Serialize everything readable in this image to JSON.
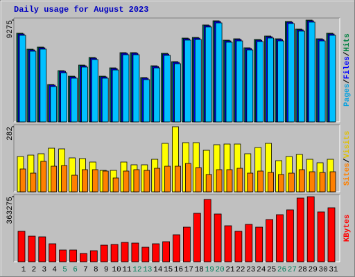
{
  "chart_data": [
    {
      "type": "bar",
      "title": "Daily usage for August 2023",
      "separator": "/",
      "ylim": [
        0,
        9275
      ],
      "yticks": [
        9275
      ],
      "series": [
        {
          "name": "Hits",
          "color": "#00805c",
          "label_color": "#008040",
          "values": [
            8077,
            6626,
            6815,
            3407,
            4669,
            4165,
            5174,
            5868,
            4165,
            4922,
            6310,
            6310,
            4038,
            5111,
            6247,
            5490,
            7635,
            7698,
            8834,
            9212,
            7446,
            7572,
            6752,
            7509,
            7824,
            7572,
            9149,
            8455,
            9275,
            7572,
            8077
          ]
        },
        {
          "name": "Files",
          "color": "#0000ff",
          "label_color": "#0000ff",
          "values": [
            8010,
            6560,
            6750,
            3350,
            4610,
            4100,
            5110,
            5800,
            4100,
            4860,
            6250,
            6250,
            3980,
            5050,
            6180,
            5430,
            7570,
            7630,
            8770,
            9150,
            7380,
            7510,
            6690,
            7440,
            7760,
            7510,
            9080,
            8390,
            9210,
            7510,
            8010
          ]
        },
        {
          "name": "Pages",
          "color": "#00c0ff",
          "label_color": "#00a0e0",
          "values": [
            7890,
            6440,
            6630,
            3220,
            4480,
            3980,
            4990,
            5680,
            3980,
            4730,
            6120,
            6120,
            3850,
            4920,
            6060,
            5300,
            7450,
            7510,
            8650,
            9020,
            7260,
            7380,
            6560,
            7320,
            7640,
            7380,
            8960,
            8270,
            9090,
            7380,
            7890
          ]
        }
      ]
    },
    {
      "type": "bar",
      "separator": "/",
      "ylim": [
        0,
        282
      ],
      "yticks": [
        282
      ],
      "series": [
        {
          "name": "Visits",
          "color": "#ffff00",
          "label_color": "#e0c000",
          "values": [
            153,
            159,
            165,
            189,
            186,
            147,
            144,
            129,
            93,
            93,
            129,
            117,
            117,
            141,
            210,
            282,
            213,
            213,
            180,
            204,
            207,
            207,
            165,
            192,
            210,
            135,
            153,
            162,
            141,
            126,
            141
          ]
        },
        {
          "name": "Sites",
          "color": "#ff8000",
          "label_color": "#ff8000",
          "values": [
            99,
            81,
            132,
            111,
            114,
            72,
            96,
            96,
            90,
            60,
            90,
            96,
            93,
            102,
            111,
            111,
            123,
            105,
            75,
            96,
            96,
            102,
            81,
            90,
            84,
            75,
            81,
            96,
            87,
            84,
            87
          ]
        }
      ]
    },
    {
      "type": "bar",
      "ylim": [
        0,
        363275
      ],
      "yticks": [
        363275
      ],
      "series": [
        {
          "name": "KBytes",
          "color": "#ff0000",
          "label_color": "#ff0000",
          "values": [
            170060,
            143005,
            139140,
            100490,
            65705,
            65705,
            46380,
            61840,
            92760,
            96625,
            108220,
            104355,
            81165,
            100490,
            112085,
            150735,
            193250,
            270550,
            347850,
            266685,
            200980,
            170060,
            208710,
            193250,
            235765,
            262820,
            289875,
            355580,
            363275,
            278280,
            301470
          ]
        }
      ],
      "categories": [
        "1",
        "2",
        "3",
        "4",
        "5",
        "6",
        "7",
        "8",
        "9",
        "10",
        "11",
        "12",
        "13",
        "14",
        "15",
        "16",
        "17",
        "18",
        "19",
        "20",
        "21",
        "22",
        "23",
        "24",
        "25",
        "26",
        "27",
        "28",
        "29",
        "30",
        "31"
      ],
      "category_colors": [
        "#000",
        "#000",
        "#000",
        "#000",
        "#00805c",
        "#00805c",
        "#000",
        "#000",
        "#000",
        "#000",
        "#000",
        "#00805c",
        "#00805c",
        "#000",
        "#000",
        "#000",
        "#000",
        "#000",
        "#00805c",
        "#00805c",
        "#000",
        "#000",
        "#000",
        "#000",
        "#000",
        "#00805c",
        "#00805c",
        "#000",
        "#000",
        "#000",
        "#000"
      ]
    }
  ]
}
